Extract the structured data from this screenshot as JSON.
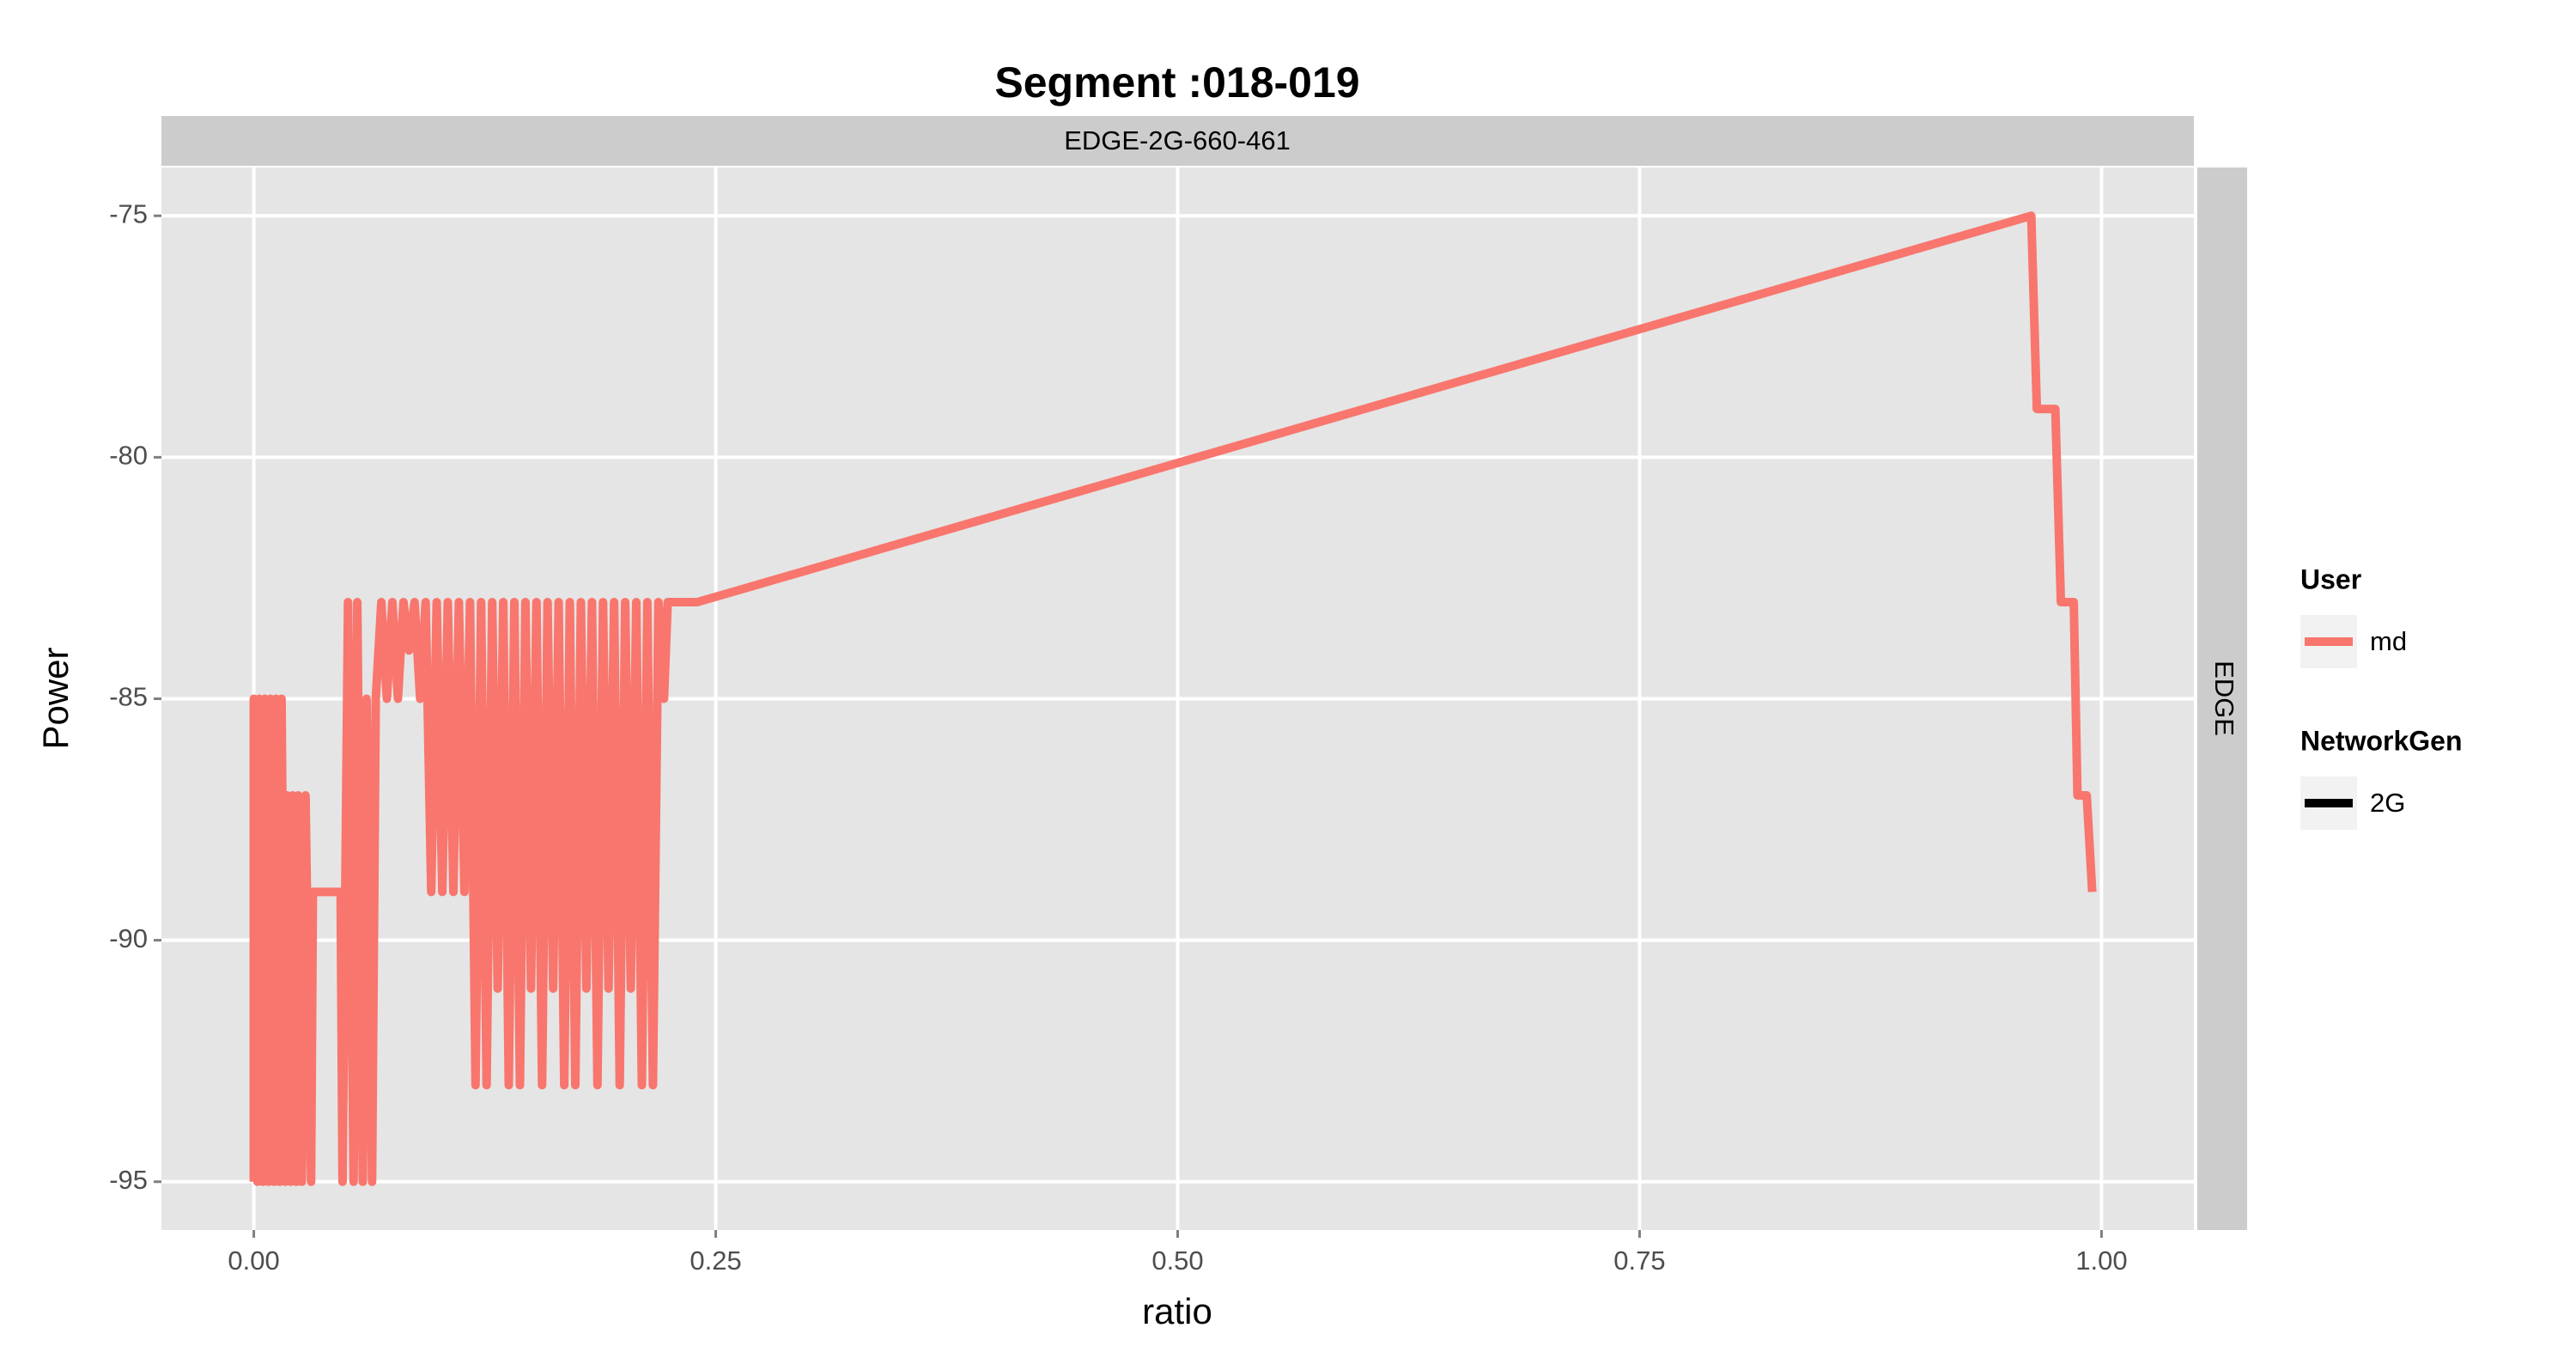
{
  "chart_data": {
    "type": "line",
    "title": "Segment :018-019",
    "facet_top": "EDGE-2G-660-461",
    "facet_right": "EDGE",
    "x_label": "ratio",
    "y_label": "Power",
    "x": [
      0.0,
      0.0,
      0.002,
      0.003,
      0.005,
      0.006,
      0.008,
      0.009,
      0.011,
      0.012,
      0.014,
      0.015,
      0.017,
      0.018,
      0.02,
      0.021,
      0.023,
      0.024,
      0.026,
      0.028,
      0.031,
      0.032,
      0.047,
      0.048,
      0.051,
      0.054,
      0.056,
      0.059,
      0.061,
      0.064,
      0.066,
      0.069,
      0.072,
      0.075,
      0.078,
      0.081,
      0.084,
      0.087,
      0.09,
      0.093,
      0.096,
      0.099,
      0.102,
      0.105,
      0.108,
      0.111,
      0.114,
      0.117,
      0.12,
      0.123,
      0.126,
      0.129,
      0.132,
      0.135,
      0.138,
      0.141,
      0.144,
      0.147,
      0.15,
      0.153,
      0.156,
      0.159,
      0.162,
      0.165,
      0.168,
      0.171,
      0.174,
      0.177,
      0.18,
      0.183,
      0.186,
      0.189,
      0.192,
      0.195,
      0.198,
      0.201,
      0.204,
      0.207,
      0.21,
      0.213,
      0.216,
      0.219,
      0.222,
      0.224,
      0.24,
      0.962,
      0.965,
      0.975,
      0.978,
      0.985,
      0.987,
      0.992,
      0.995
    ],
    "series": [
      {
        "name": "md",
        "color": "#f8766d",
        "values": [
          -95,
          -85,
          -95,
          -85,
          -95,
          -85,
          -95,
          -85,
          -95,
          -85,
          -95,
          -85,
          -95,
          -87,
          -95,
          -87,
          -95,
          -87,
          -95,
          -87,
          -95,
          -89,
          -89,
          -95,
          -83,
          -95,
          -83,
          -95,
          -85,
          -95,
          -85,
          -83,
          -85,
          -83,
          -85,
          -83,
          -84,
          -83,
          -85,
          -83,
          -89,
          -83,
          -89,
          -83,
          -89,
          -83,
          -89,
          -83,
          -93,
          -83,
          -93,
          -83,
          -91,
          -83,
          -93,
          -83,
          -93,
          -83,
          -91,
          -83,
          -93,
          -83,
          -91,
          -83,
          -93,
          -83,
          -93,
          -83,
          -91,
          -83,
          -93,
          -83,
          -91,
          -83,
          -93,
          -83,
          -91,
          -83,
          -93,
          -83,
          -93,
          -83,
          -85,
          -83,
          -83,
          -75,
          -79,
          -79,
          -83,
          -83,
          -87,
          -87,
          -89
        ]
      }
    ],
    "legend_user_title": "User",
    "legend_network_title": "NetworkGen",
    "legend_network_entry": "2G",
    "xlim": [
      -0.05,
      1.05
    ],
    "xticks": [
      {
        "value": 0,
        "label": "0.00"
      },
      {
        "value": 0.25,
        "label": "0.25"
      },
      {
        "value": 0.5,
        "label": "0.50"
      },
      {
        "value": 0.75,
        "label": "0.75"
      },
      {
        "value": 1,
        "label": "1.00"
      }
    ],
    "ylim": [
      -96,
      -74
    ],
    "yticks": [
      -95,
      -90,
      -85,
      -80,
      -75
    ],
    "grid": true
  }
}
